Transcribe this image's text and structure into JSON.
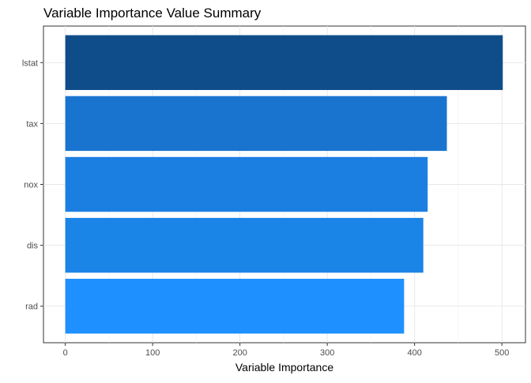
{
  "chart_data": {
    "type": "bar",
    "orientation": "horizontal",
    "title": "Variable Importance Value Summary",
    "xlabel": "Variable Importance",
    "ylabel": "",
    "categories": [
      "lstat",
      "tax",
      "nox",
      "dis",
      "rad"
    ],
    "values": [
      501,
      437,
      415,
      410,
      388
    ],
    "xlim": [
      -25,
      527
    ],
    "x_ticks": [
      0,
      100,
      200,
      300,
      400,
      500
    ],
    "x_tick_labels": [
      "0",
      "100",
      "200",
      "300",
      "400",
      "500"
    ],
    "grid": true,
    "legend": "none",
    "colors": [
      "#0f4d8a",
      "#1974d0",
      "#1b7fe2",
      "#1b84e7",
      "#1e90ff"
    ]
  }
}
